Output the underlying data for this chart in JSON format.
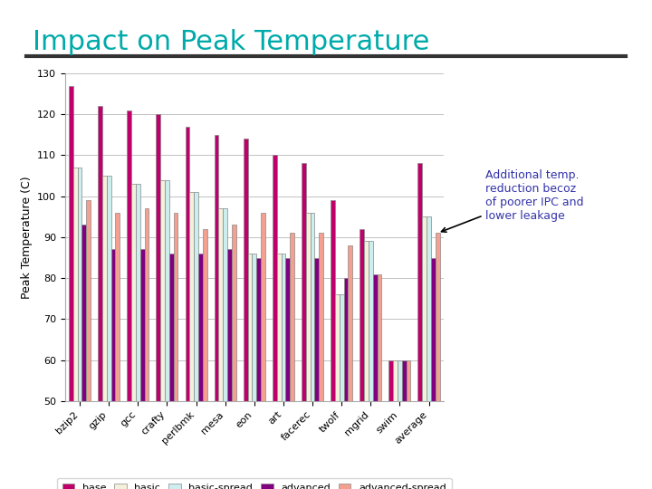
{
  "title": "Impact on Peak Temperature",
  "title_color": "#00AAAA",
  "ylabel": "Peak Temperature (C)",
  "ylim": [
    50,
    130
  ],
  "yticks": [
    50,
    60,
    70,
    80,
    90,
    100,
    110,
    120,
    130
  ],
  "categories": [
    "bzip2",
    "gzip",
    "gcc",
    "crafty",
    "perlbmk",
    "mesa",
    "eon",
    "art",
    "facerec",
    "twolf",
    "mgrid",
    "swim",
    "average"
  ],
  "series": {
    "base": [
      127,
      122,
      121,
      120,
      117,
      115,
      114,
      110,
      108,
      99,
      92,
      60,
      108
    ],
    "basic": [
      107,
      105,
      103,
      104,
      101,
      97,
      86,
      86,
      96,
      76,
      89,
      60,
      95
    ],
    "basic-spread": [
      107,
      105,
      103,
      104,
      101,
      97,
      86,
      86,
      96,
      76,
      89,
      60,
      95
    ],
    "advanced": [
      93,
      87,
      87,
      86,
      86,
      87,
      85,
      85,
      85,
      80,
      81,
      60,
      85
    ],
    "advanced-spread": [
      99,
      96,
      97,
      96,
      92,
      93,
      96,
      91,
      91,
      88,
      81,
      60,
      91
    ]
  },
  "colors": {
    "base": "#C0006A",
    "basic": "#F5F0DC",
    "basic-spread": "#CCEEEE",
    "advanced": "#800080",
    "advanced-spread": "#F4A090"
  },
  "annotation_text": "Additional temp.\nreduction becoz\nof poorer IPC and\nlower leakage",
  "annotation_color": "#3333AA",
  "background_color": "#FFFFFF",
  "bar_width": 0.15,
  "separator_line_color": "#333333"
}
